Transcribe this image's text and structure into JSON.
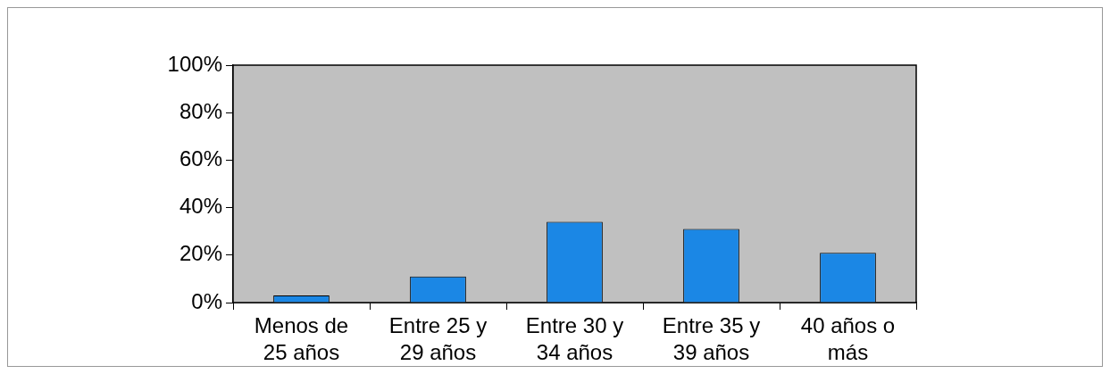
{
  "chart_data": {
    "type": "bar",
    "categories": [
      "Menos de 25 años",
      "Entre 25 y 29 años",
      "Entre 30 y 34 años",
      "Entre 35 y 39 años",
      "40 años o más"
    ],
    "values": [
      3,
      11,
      34,
      31,
      21
    ],
    "color": "#1b87e5",
    "ylim": [
      0,
      100
    ],
    "yticks": [
      {
        "value": 0,
        "label": "0%"
      },
      {
        "value": 20,
        "label": "20%"
      },
      {
        "value": 40,
        "label": "40%"
      },
      {
        "value": 60,
        "label": "60%"
      },
      {
        "value": 80,
        "label": "80%"
      },
      {
        "value": 100,
        "label": "100%"
      }
    ]
  }
}
